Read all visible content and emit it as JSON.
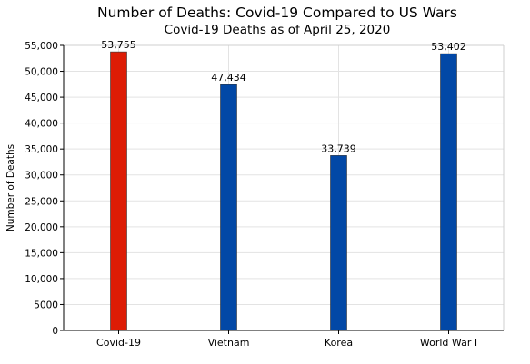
{
  "chart_data": {
    "type": "bar",
    "title": "Number of Deaths:  Covid-19 Compared to US Wars",
    "subtitle": "Covid-19 Deaths as of April 25, 2020",
    "xlabel": "",
    "ylabel": "Number of Deaths",
    "categories": [
      "Covid-19",
      "Vietnam",
      "Korea",
      "World War I"
    ],
    "values": [
      53755,
      47434,
      33739,
      53402
    ],
    "data_labels": [
      "53,755",
      "47,434",
      "33,739",
      "53,402"
    ],
    "bar_colors": [
      "#dd1c05",
      "#0248a6",
      "#0248a6",
      "#0248a6"
    ],
    "ylim": [
      0,
      55000
    ],
    "yticks": [
      0,
      5000,
      10000,
      15000,
      20000,
      25000,
      30000,
      35000,
      40000,
      45000,
      50000,
      55000
    ],
    "ytick_labels": [
      "0",
      "5000",
      "10,000",
      "15,000",
      "20,000",
      "25,000",
      "30,000",
      "35,000",
      "40,000",
      "45,000",
      "50,000",
      "55,000"
    ],
    "grid": true,
    "legend": "none"
  }
}
